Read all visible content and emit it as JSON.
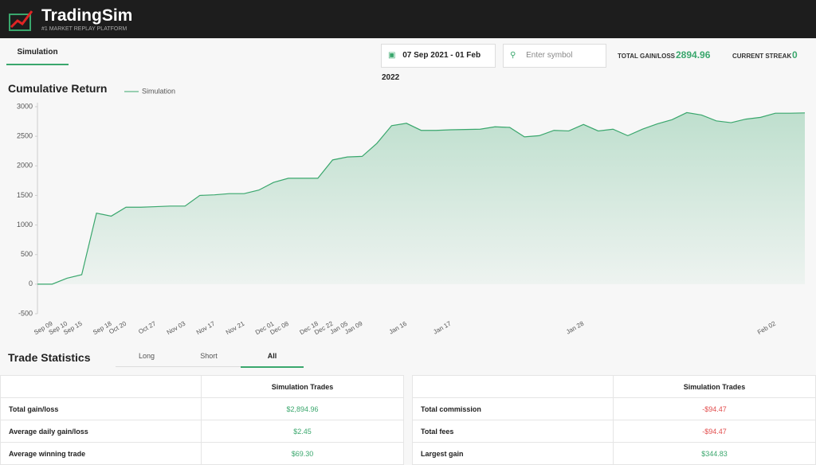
{
  "header": {
    "brand": "TradingSim",
    "tagline": "#1 MARKET REPLAY PLATFORM"
  },
  "toolbar": {
    "tab": "Simulation",
    "date_range": "07 Sep 2021 - 01 Feb 2022",
    "search_placeholder": "Enter symbol",
    "gain_label": "TOTAL GAIN/LOSS",
    "gain_value": "2894.96",
    "streak_label": "CURRENT STREAK",
    "streak_value": "0"
  },
  "chart_data": {
    "type": "line",
    "title": "Cumulative Return",
    "categories": [
      null,
      "Sep 09",
      "Sep 10",
      "Sep 15",
      null,
      "Sep 18",
      "Oct 20",
      null,
      "Oct 27",
      null,
      "Nov 03",
      null,
      "Nov 17",
      null,
      "Nov 21",
      null,
      "Dec 01",
      "Dec 08",
      null,
      "Dec 18",
      "Dec 22",
      "Jan 05",
      "Jan 09",
      null,
      null,
      "Jan 16",
      null,
      null,
      "Jan 17",
      null,
      null,
      null,
      null,
      null,
      null,
      null,
      null,
      "Jan 28",
      null,
      null,
      null,
      null,
      null,
      null,
      null,
      null,
      null,
      null,
      null,
      null,
      "Feb 02",
      null,
      null
    ],
    "series": [
      {
        "name": "Simulation",
        "color": "#3aa76d",
        "values": [
          0,
          0,
          100,
          160,
          1200,
          1150,
          1300,
          1300,
          1310,
          1320,
          1320,
          1500,
          1510,
          1530,
          1530,
          1590,
          1720,
          1790,
          1790,
          1790,
          2100,
          2150,
          2160,
          2380,
          2680,
          2720,
          2600,
          2600,
          2610,
          2615,
          2620,
          2660,
          2650,
          2490,
          2510,
          2600,
          2590,
          2700,
          2590,
          2620,
          2510,
          2620,
          2710,
          2780,
          2900,
          2860,
          2760,
          2730,
          2790,
          2820,
          2890,
          2890,
          2895
        ]
      }
    ],
    "ylim": [
      -500,
      3000
    ],
    "yticks": [
      -500,
      0,
      500,
      1000,
      1500,
      2000,
      2500,
      3000
    ],
    "grid": false
  },
  "stats": {
    "title": "Trade Statistics",
    "tabs": [
      "Long",
      "Short",
      "All"
    ],
    "left": {
      "header": "Simulation Trades",
      "rows": [
        [
          "Total gain/loss",
          "$2,894.96"
        ],
        [
          "Average daily gain/loss",
          "$2.45"
        ],
        [
          "Average winning trade",
          "$69.30"
        ]
      ]
    },
    "right": {
      "header": "Simulation Trades",
      "rows": [
        [
          "Total commission",
          "-$94.47"
        ],
        [
          "Total fees",
          "-$94.47"
        ],
        [
          "Largest gain",
          "$344.83"
        ]
      ]
    }
  }
}
